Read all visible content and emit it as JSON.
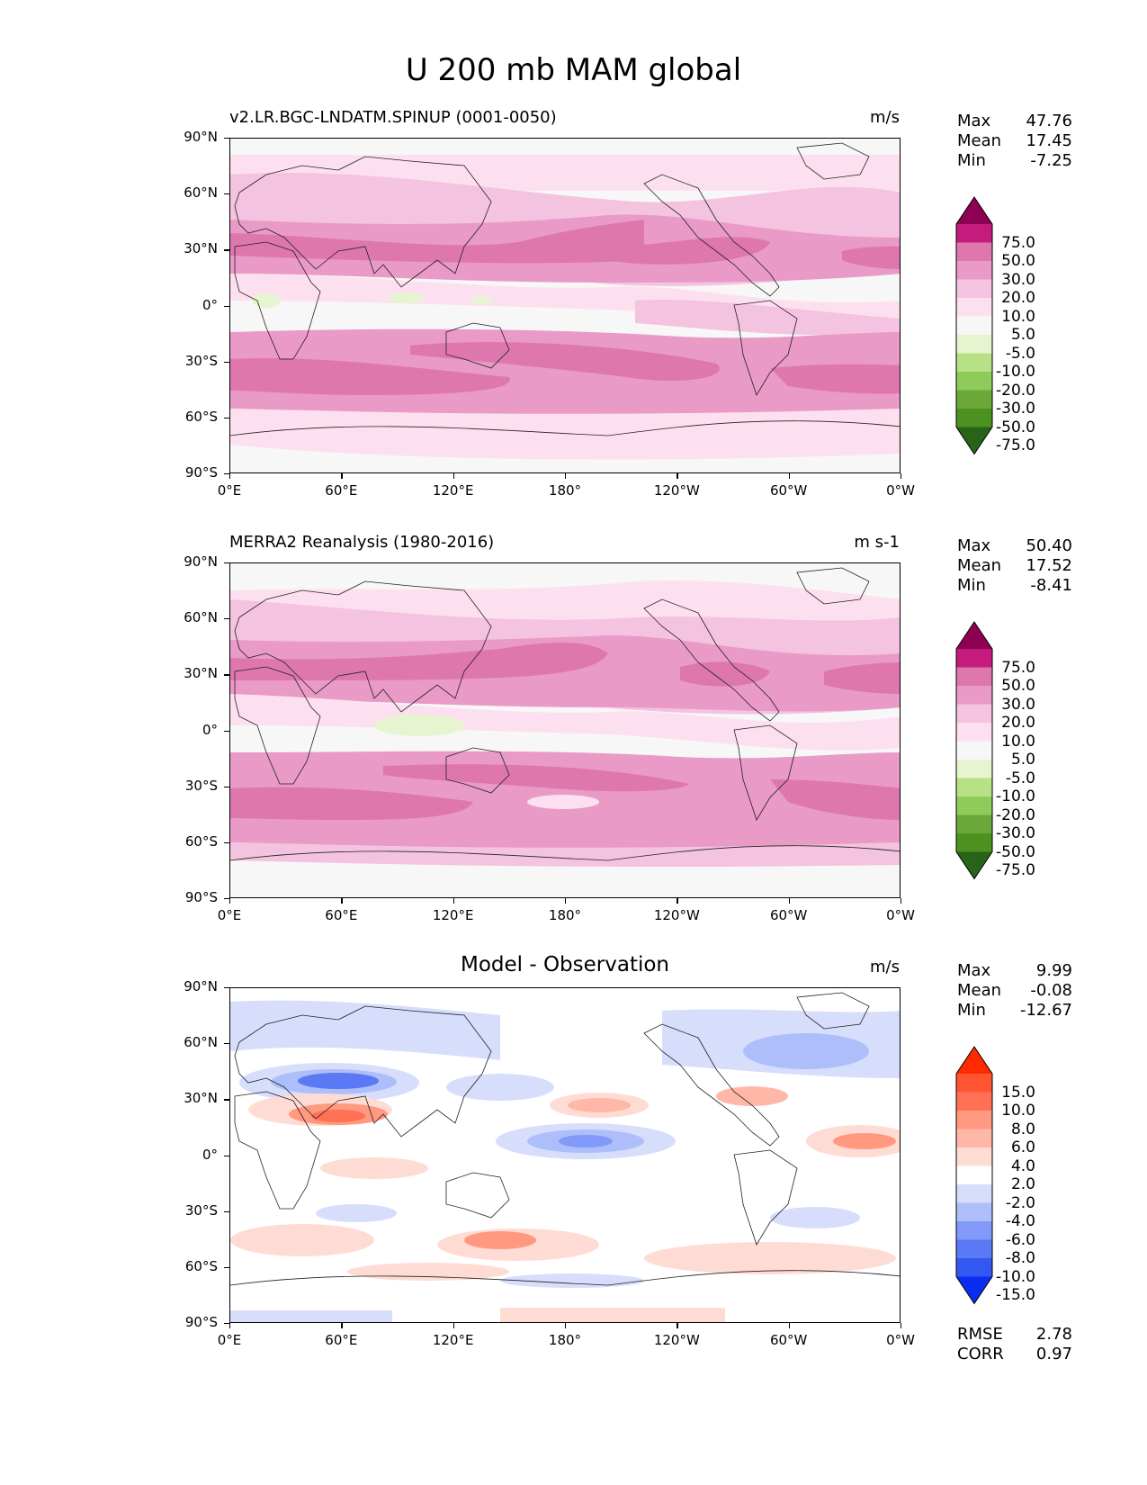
{
  "title": "U 200 mb MAM global",
  "axes": {
    "y_ticks": [
      "90°N",
      "60°N",
      "30°N",
      "0°",
      "30°S",
      "60°S",
      "90°S"
    ],
    "x_ticks": [
      "0°E",
      "60°E",
      "120°E",
      "180°",
      "120°W",
      "60°W",
      "0°W"
    ]
  },
  "panels": [
    {
      "id": "test",
      "title": "v2.LR.BGC-LNDATM.SPINUP (0001-0050)",
      "units": "m/s",
      "stats": {
        "max": "47.76",
        "mean": "17.45",
        "min": "-7.25"
      },
      "colorbar_levels": [
        "75.0",
        "50.0",
        "30.0",
        "20.0",
        "10.0",
        "5.0",
        "-5.0",
        "-10.0",
        "-20.0",
        "-30.0",
        "-50.0",
        "-75.0"
      ],
      "colorbar_colors": [
        "#8e0152",
        "#c51b7d",
        "#de77ae",
        "#e99ac6",
        "#f4c3e0",
        "#fde0ef",
        "#f7f7f7",
        "#e6f5d0",
        "#b8e186",
        "#8fcb5a",
        "#6aa83a",
        "#4d9221",
        "#276419"
      ]
    },
    {
      "id": "ref",
      "title": "MERRA2 Reanalysis (1980-2016)",
      "units": "m s-1",
      "stats": {
        "max": "50.40",
        "mean": "17.52",
        "min": "-8.41"
      },
      "colorbar_levels": [
        "75.0",
        "50.0",
        "30.0",
        "20.0",
        "10.0",
        "5.0",
        "-5.0",
        "-10.0",
        "-20.0",
        "-30.0",
        "-50.0",
        "-75.0"
      ],
      "colorbar_colors": [
        "#8e0152",
        "#c51b7d",
        "#de77ae",
        "#e99ac6",
        "#f4c3e0",
        "#fde0ef",
        "#f7f7f7",
        "#e6f5d0",
        "#b8e186",
        "#8fcb5a",
        "#6aa83a",
        "#4d9221",
        "#276419"
      ]
    },
    {
      "id": "diff",
      "title": "Model - Observation",
      "units": "m/s",
      "stats": {
        "max": "9.99",
        "mean": "-0.08",
        "min": "-12.67"
      },
      "colorbar_levels": [
        "15.0",
        "10.0",
        "8.0",
        "6.0",
        "4.0",
        "2.0",
        "-2.0",
        "-4.0",
        "-6.0",
        "-8.0",
        "-10.0",
        "-15.0"
      ],
      "colorbar_colors": [
        "#ff2a00",
        "#ff5533",
        "#ff7055",
        "#ff9980",
        "#ffb8a8",
        "#ffdcd3",
        "#ffffff",
        "#d6defc",
        "#adbefa",
        "#8199f8",
        "#5b78f5",
        "#3358f2",
        "#0a2ef0"
      ],
      "rmse": "2.78",
      "corr": "0.97"
    }
  ],
  "labels": {
    "max": "Max",
    "mean": "Mean",
    "min": "Min",
    "rmse": "RMSE",
    "corr": "CORR"
  }
}
